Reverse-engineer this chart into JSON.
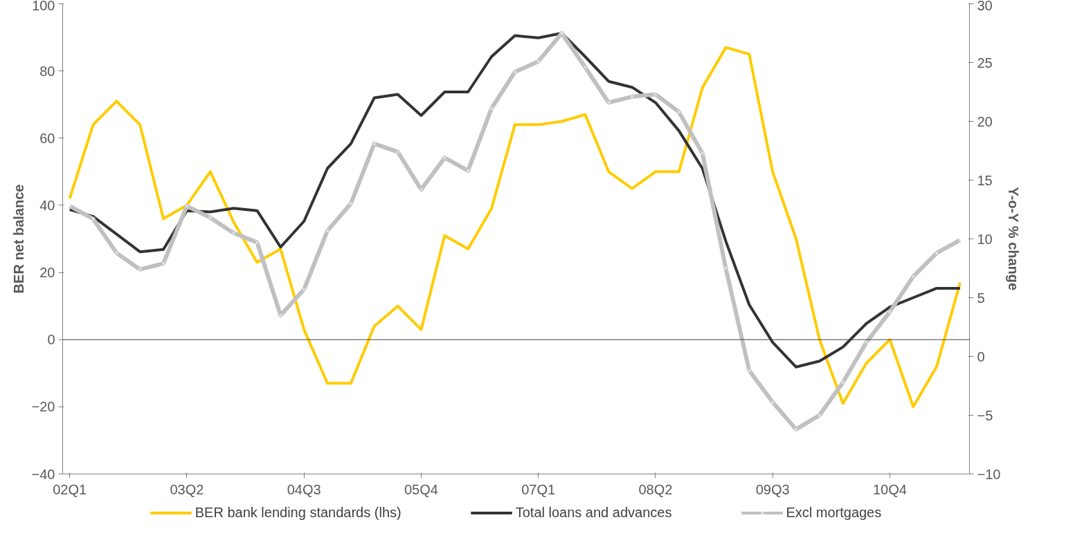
{
  "chart_data": {
    "type": "line",
    "categories": [
      "02Q1",
      null,
      null,
      null,
      null,
      "03Q2",
      null,
      null,
      null,
      null,
      "04Q3",
      null,
      null,
      null,
      null,
      "05Q4",
      null,
      null,
      null,
      null,
      "07Q1",
      null,
      null,
      null,
      null,
      "08Q2",
      null,
      null,
      null,
      null,
      "09Q3",
      null,
      null,
      null,
      null,
      "10Q4",
      null,
      null,
      null
    ],
    "ylabel": "BER net balance",
    "y2label": "Y-o-Y % change",
    "ylim": [
      -40,
      100
    ],
    "yticks": [
      -40,
      -20,
      0,
      20,
      40,
      60,
      80,
      100
    ],
    "y2lim": [
      -10,
      30
    ],
    "y2ticks": [
      -10,
      -5,
      0,
      5,
      10,
      15,
      20,
      25,
      30
    ],
    "grid": false,
    "legend": "bottom",
    "line_style": "solid",
    "ref_lines": [
      {
        "axis": "y",
        "value": 0,
        "color": "#404040"
      }
    ],
    "series": [
      {
        "name": "BER bank lending standards (lhs)",
        "color": "#ffcc00",
        "marker": "none",
        "values": [
          42,
          64,
          71,
          64,
          36,
          40,
          50,
          35,
          23,
          27,
          3,
          -13,
          -13,
          4,
          10,
          3,
          31,
          27,
          39,
          64,
          64,
          65,
          67,
          50,
          45,
          50,
          50,
          75,
          87,
          85,
          50,
          30,
          0,
          -19,
          -7,
          0,
          -20,
          -8,
          17
        ]
      },
      {
        "name": "Total loans and advances",
        "color": "#333333",
        "marker": "none",
        "axis": "y2",
        "values": [
          12.5,
          11.9,
          10.4,
          8.9,
          9.1,
          12.4,
          12.3,
          12.6,
          12.4,
          9.3,
          11.5,
          16.0,
          18.1,
          22.0,
          22.3,
          20.5,
          22.5,
          22.5,
          25.5,
          27.3,
          27.1,
          27.5,
          25.5,
          23.4,
          22.9,
          21.6,
          19.2,
          16.0,
          9.8,
          4.4,
          1.2,
          -0.9,
          -0.4,
          0.8,
          2.8,
          4.2,
          5.0,
          5.8,
          5.8
        ]
      },
      {
        "name": "Excl mortgages",
        "color": "#c0c0c0",
        "marker": "cross",
        "axis": "y2",
        "values": [
          12.8,
          11.7,
          8.8,
          7.4,
          7.9,
          12.8,
          11.8,
          10.5,
          9.7,
          3.5,
          5.7,
          10.7,
          13.0,
          18.1,
          17.4,
          14.2,
          16.9,
          15.8,
          21.1,
          24.2,
          25.1,
          27.5,
          24.6,
          21.6,
          22.1,
          22.3,
          20.8,
          17.3,
          7.5,
          -1.2,
          -3.9,
          -6.2,
          -5.0,
          -2.2,
          1.2,
          3.8,
          6.8,
          8.8,
          9.9
        ]
      }
    ]
  }
}
